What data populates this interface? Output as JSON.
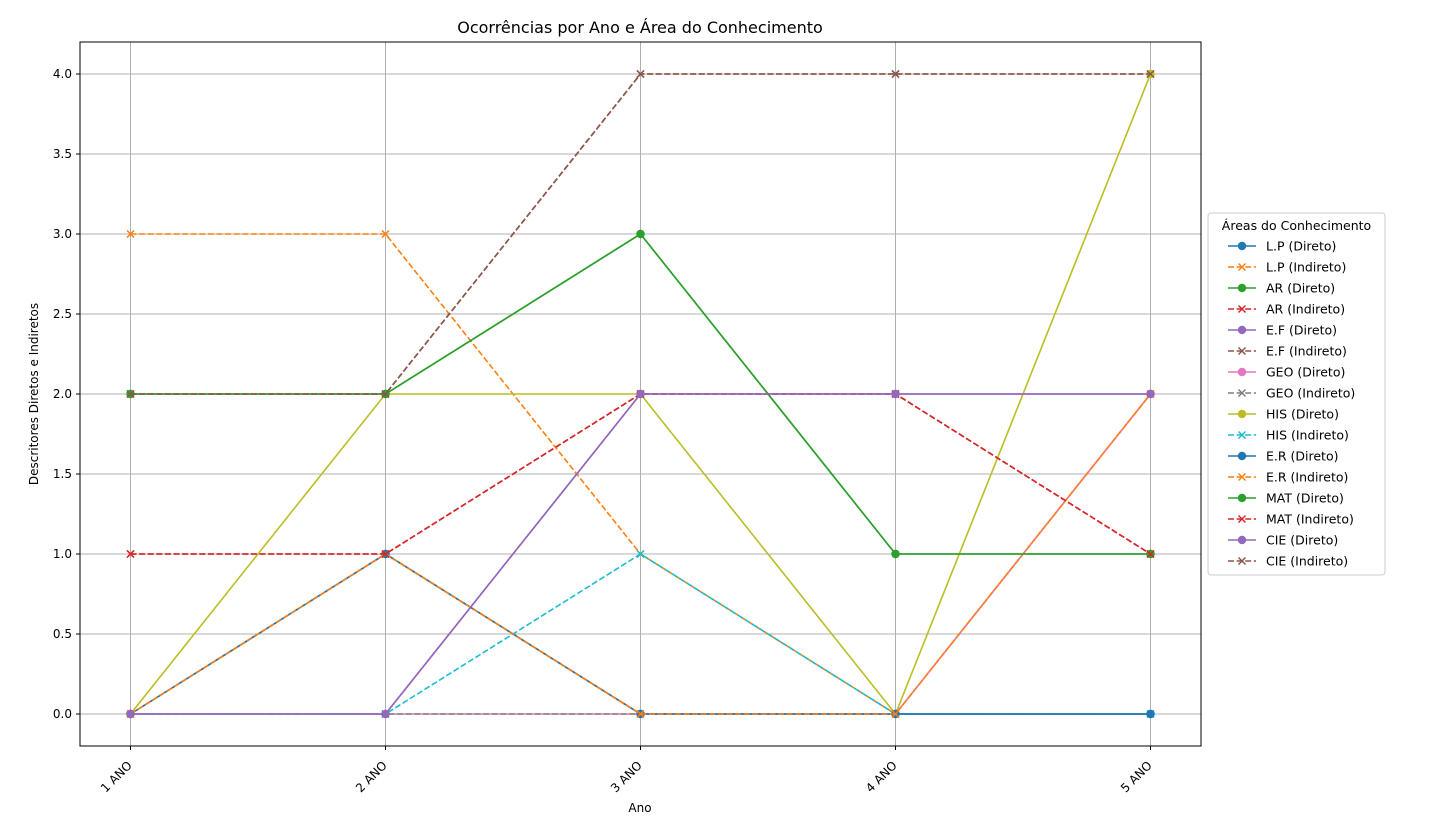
{
  "chart_data": {
    "type": "line",
    "title": "Ocorrências por Ano e Área do Conhecimento",
    "xlabel": "Ano",
    "ylabel": "Descritores Diretos e Indiretos",
    "categories": [
      "1 ANO",
      "2 ANO",
      "3 ANO",
      "4 ANO",
      "5 ANO"
    ],
    "ylim": [
      -0.2,
      4.2
    ],
    "yticks": [
      "0.0",
      "0.5",
      "1.0",
      "1.5",
      "2.0",
      "2.5",
      "3.0",
      "3.5",
      "4.0"
    ],
    "grid": true,
    "legend": {
      "title": "Áreas do Conhecimento",
      "placement": "center-right outside"
    },
    "series": [
      {
        "name": "L.P (Direto)",
        "values": [
          0,
          1,
          0,
          0,
          0
        ],
        "color": "#1f77b4",
        "style": "solid",
        "marker": "circle"
      },
      {
        "name": "L.P (Indireto)",
        "values": [
          3,
          3,
          1,
          0,
          2
        ],
        "color": "#ff7f0e",
        "style": "dashed",
        "marker": "x"
      },
      {
        "name": "AR (Direto)",
        "values": [
          2,
          2,
          3,
          1,
          1
        ],
        "color": "#2ca02c",
        "style": "solid",
        "marker": "circle"
      },
      {
        "name": "AR (Indireto)",
        "values": [
          1,
          1,
          2,
          2,
          1
        ],
        "color": "#d62728",
        "style": "dashed",
        "marker": "x"
      },
      {
        "name": "E.F (Direto)",
        "values": [
          0,
          0,
          2,
          2,
          2
        ],
        "color": "#9467bd",
        "style": "solid",
        "marker": "circle"
      },
      {
        "name": "E.F (Indireto)",
        "values": [
          2,
          2,
          4,
          4,
          4
        ],
        "color": "#8c564b",
        "style": "dashed",
        "marker": "x"
      },
      {
        "name": "GEO (Direto)",
        "values": [
          0,
          0,
          0,
          0,
          2
        ],
        "color": "#e377c2",
        "style": "solid",
        "marker": "circle"
      },
      {
        "name": "GEO (Indireto)",
        "values": [
          0,
          0,
          0,
          0,
          0
        ],
        "color": "#7f7f7f",
        "style": "dashed",
        "marker": "x"
      },
      {
        "name": "HIS (Direto)",
        "values": [
          0,
          2,
          2,
          0,
          4
        ],
        "color": "#bcbd22",
        "style": "solid",
        "marker": "circle"
      },
      {
        "name": "HIS (Indireto)",
        "values": [
          0,
          0,
          1,
          0,
          0
        ],
        "color": "#17becf",
        "style": "dashed",
        "marker": "x"
      },
      {
        "name": "E.R (Direto)",
        "values": [
          0,
          1,
          0,
          0,
          0
        ],
        "color": "#1f77b4",
        "style": "solid",
        "marker": "circle"
      },
      {
        "name": "E.R (Indireto)",
        "values": [
          0,
          1,
          0,
          0,
          2
        ],
        "color": "#ff7f0e",
        "style": "dashed",
        "marker": "x"
      },
      {
        "name": "MAT (Direto)",
        "values": [
          2,
          2,
          3,
          1,
          1
        ],
        "color": "#2ca02c",
        "style": "solid",
        "marker": "circle"
      },
      {
        "name": "MAT (Indireto)",
        "values": [
          1,
          1,
          2,
          2,
          1
        ],
        "color": "#d62728",
        "style": "dashed",
        "marker": "x"
      },
      {
        "name": "CIE (Direto)",
        "values": [
          0,
          0,
          2,
          2,
          2
        ],
        "color": "#9467bd",
        "style": "solid",
        "marker": "circle"
      },
      {
        "name": "CIE (Indireto)",
        "values": [
          2,
          2,
          4,
          4,
          4
        ],
        "color": "#8c564b",
        "style": "dashed",
        "marker": "x"
      }
    ]
  }
}
